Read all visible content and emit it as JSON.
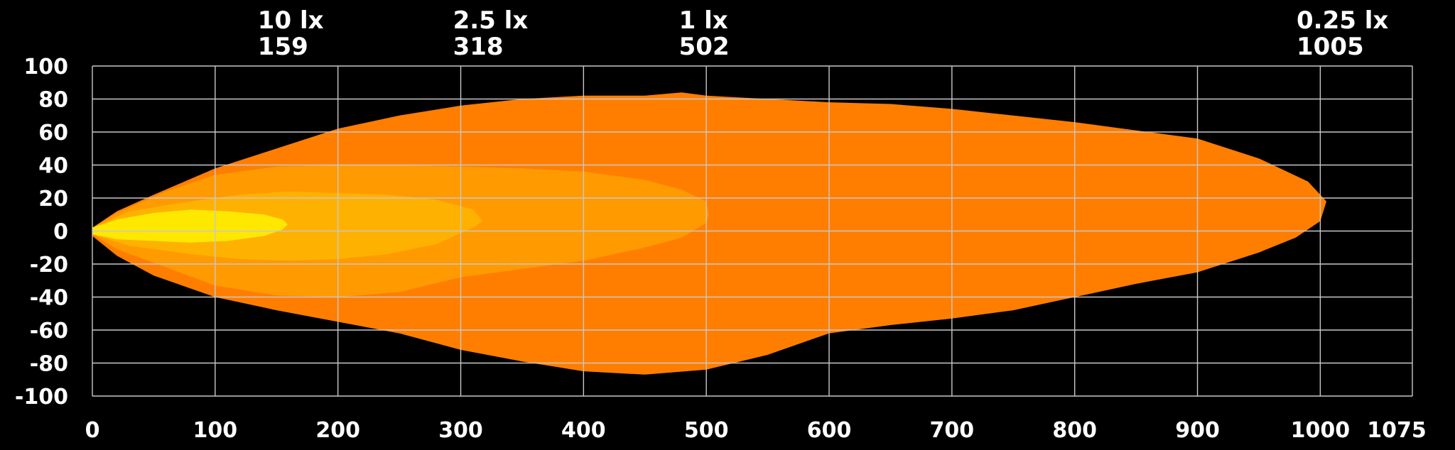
{
  "chart_data": {
    "type": "area",
    "title": "",
    "xlabel": "",
    "ylabel": "",
    "xlim": [
      0,
      1075
    ],
    "ylim": [
      -100,
      100
    ],
    "grid": true,
    "xticks": [
      0,
      100,
      200,
      300,
      400,
      500,
      600,
      700,
      800,
      900,
      1000,
      1075
    ],
    "yticks": [
      100,
      80,
      60,
      40,
      20,
      0,
      -20,
      -40,
      -60,
      -80,
      -100
    ],
    "zones": [
      {
        "lux_label": "0.25 lx",
        "distance": 1005,
        "color": "#FF7E00",
        "outline": [
          [
            0,
            2
          ],
          [
            20,
            12
          ],
          [
            50,
            22
          ],
          [
            100,
            38
          ],
          [
            150,
            50
          ],
          [
            200,
            62
          ],
          [
            250,
            70
          ],
          [
            300,
            76
          ],
          [
            350,
            80
          ],
          [
            400,
            82
          ],
          [
            450,
            82
          ],
          [
            480,
            84
          ],
          [
            500,
            82
          ],
          [
            600,
            78
          ],
          [
            650,
            77
          ],
          [
            700,
            74
          ],
          [
            750,
            70
          ],
          [
            800,
            66
          ],
          [
            850,
            61
          ],
          [
            900,
            56
          ],
          [
            950,
            44
          ],
          [
            990,
            30
          ],
          [
            1005,
            18
          ],
          [
            1000,
            6
          ],
          [
            980,
            -4
          ],
          [
            950,
            -13
          ],
          [
            900,
            -25
          ],
          [
            850,
            -32
          ],
          [
            800,
            -40
          ],
          [
            750,
            -48
          ],
          [
            700,
            -53
          ],
          [
            650,
            -57
          ],
          [
            600,
            -62
          ],
          [
            550,
            -75
          ],
          [
            500,
            -84
          ],
          [
            450,
            -87
          ],
          [
            400,
            -85
          ],
          [
            350,
            -79
          ],
          [
            300,
            -72
          ],
          [
            250,
            -62
          ],
          [
            200,
            -55
          ],
          [
            150,
            -48
          ],
          [
            100,
            -40
          ],
          [
            50,
            -27
          ],
          [
            20,
            -15
          ],
          [
            0,
            -3
          ]
        ]
      },
      {
        "lux_label": "1 lx",
        "distance": 502,
        "color": "#FF9A00",
        "outline": [
          [
            0,
            2
          ],
          [
            20,
            11
          ],
          [
            60,
            24
          ],
          [
            100,
            34
          ],
          [
            150,
            39
          ],
          [
            200,
            40
          ],
          [
            250,
            40
          ],
          [
            300,
            39
          ],
          [
            350,
            38
          ],
          [
            400,
            36
          ],
          [
            450,
            31
          ],
          [
            480,
            25
          ],
          [
            500,
            18
          ],
          [
            502,
            10
          ],
          [
            500,
            5
          ],
          [
            480,
            -4
          ],
          [
            450,
            -10
          ],
          [
            400,
            -18
          ],
          [
            350,
            -23
          ],
          [
            300,
            -28
          ],
          [
            250,
            -37
          ],
          [
            200,
            -40
          ],
          [
            150,
            -39
          ],
          [
            100,
            -33
          ],
          [
            60,
            -22
          ],
          [
            20,
            -11
          ],
          [
            0,
            -2
          ]
        ]
      },
      {
        "lux_label": "2.5 lx",
        "distance": 318,
        "color": "#FFB100",
        "outline": [
          [
            0,
            2
          ],
          [
            30,
            12
          ],
          [
            80,
            18
          ],
          [
            120,
            22
          ],
          [
            160,
            24
          ],
          [
            200,
            23
          ],
          [
            240,
            22
          ],
          [
            280,
            19
          ],
          [
            310,
            13
          ],
          [
            318,
            6
          ],
          [
            310,
            2
          ],
          [
            280,
            -8
          ],
          [
            240,
            -14
          ],
          [
            200,
            -17
          ],
          [
            160,
            -18
          ],
          [
            120,
            -17
          ],
          [
            80,
            -14
          ],
          [
            30,
            -9
          ],
          [
            0,
            -2
          ]
        ]
      },
      {
        "lux_label": "10 lx",
        "distance": 159,
        "color": "#FFE800",
        "outline": [
          [
            0,
            2
          ],
          [
            20,
            7
          ],
          [
            50,
            11
          ],
          [
            80,
            13
          ],
          [
            110,
            12
          ],
          [
            140,
            10
          ],
          [
            155,
            7
          ],
          [
            159,
            4
          ],
          [
            155,
            1
          ],
          [
            140,
            -3
          ],
          [
            110,
            -6
          ],
          [
            80,
            -7
          ],
          [
            50,
            -6
          ],
          [
            20,
            -5
          ],
          [
            0,
            -2
          ]
        ]
      }
    ]
  }
}
